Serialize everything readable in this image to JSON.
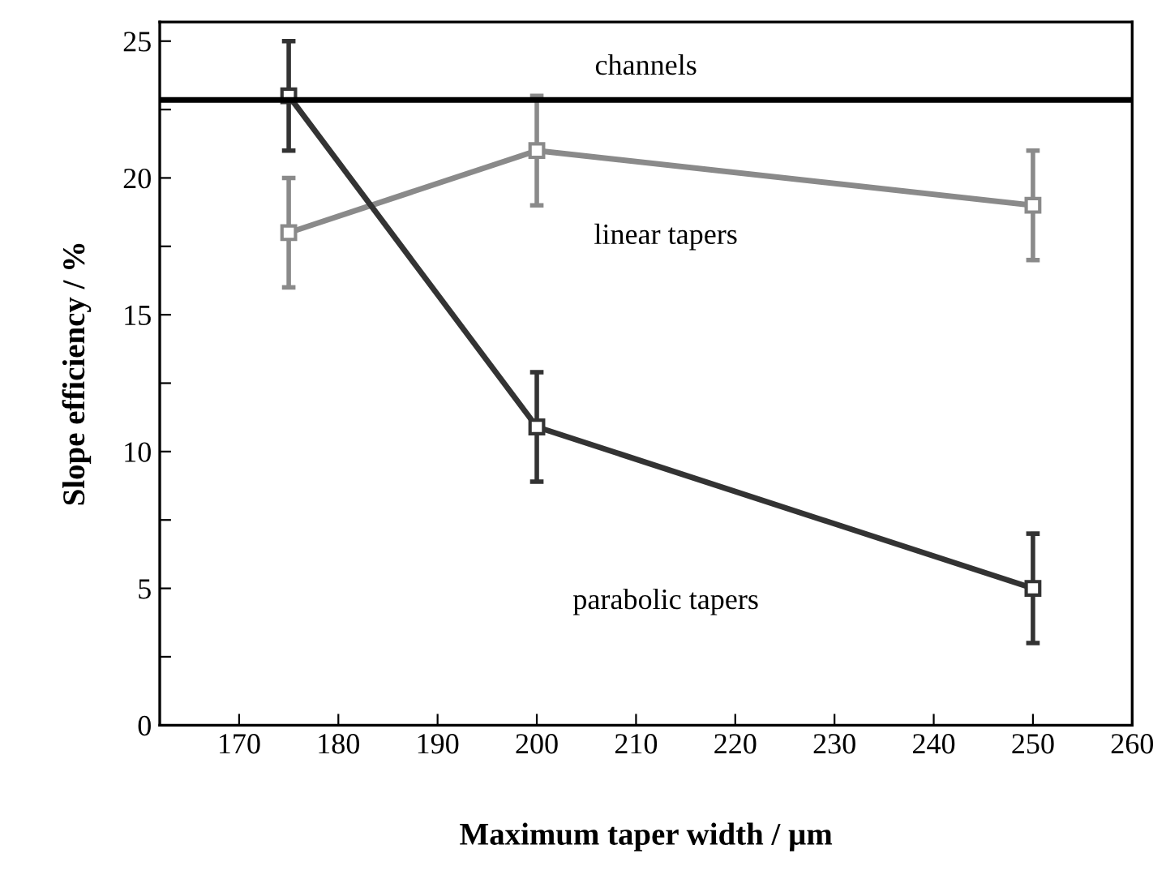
{
  "chart_data": {
    "type": "line",
    "xlabel": "Maximum taper width / µm",
    "ylabel": "Slope efficiency / %",
    "x": [
      175,
      200,
      250
    ],
    "series": [
      {
        "name": "linear tapers",
        "color": "#8a8a8a",
        "values": [
          18,
          21,
          19
        ],
        "errors": [
          2,
          2,
          2
        ]
      },
      {
        "name": "parabolic tapers",
        "color": "#333333",
        "values": [
          23,
          10.9,
          5
        ],
        "errors": [
          2,
          2,
          2
        ]
      }
    ],
    "marker": "square",
    "line_style": "solid",
    "grid": false,
    "legend": false,
    "xlim": [
      162,
      260
    ],
    "xticks": [
      170,
      180,
      190,
      200,
      210,
      220,
      230,
      240,
      250,
      260
    ],
    "ylim": [
      0,
      25.7
    ],
    "yticks": [
      0,
      {
        "value": 2.5,
        "label": null
      },
      5,
      {
        "value": 7.5,
        "label": null
      },
      10,
      {
        "value": 12.5,
        "label": null
      },
      15,
      {
        "value": 17.5,
        "label": null
      },
      20,
      {
        "value": 22.5,
        "label": null
      },
      25
    ],
    "ref_lines": [
      {
        "axis": "y",
        "value": 22.85,
        "label": "channels",
        "color": "#000000",
        "line_style": "solid"
      }
    ]
  }
}
